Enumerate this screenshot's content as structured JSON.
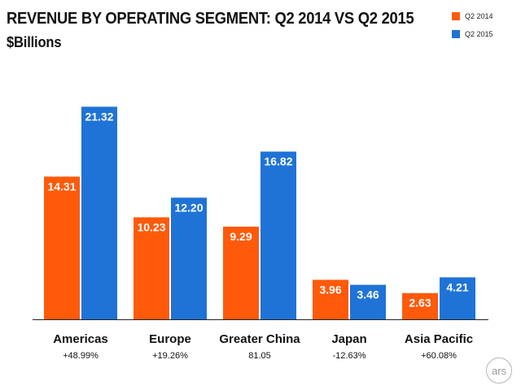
{
  "chart_data": {
    "type": "bar",
    "title": "REVENUE BY OPERATING SEGMENT: Q2 2014 VS Q2 2015",
    "subtitle": "$Billions",
    "categories": [
      "Americas",
      "Europe",
      "Greater China",
      "Japan",
      "Asia Pacific"
    ],
    "category_notes": [
      "+48.99%",
      "+19.26%",
      "81.05",
      "-12.63%",
      "+60.08%"
    ],
    "series": [
      {
        "name": "Q2 2014",
        "color": "#ff5a0a",
        "values": [
          14.31,
          10.23,
          9.29,
          3.96,
          2.63
        ],
        "labels": [
          "14.31",
          "10.23",
          "9.29",
          "3.96",
          "2.63"
        ]
      },
      {
        "name": "Q2 2015",
        "color": "#1f73d6",
        "values": [
          21.32,
          12.2,
          16.82,
          3.46,
          4.21
        ],
        "labels": [
          "21.32",
          "12.20",
          "16.82",
          "3.46",
          "4.21"
        ]
      }
    ],
    "ylim": [
      0,
      22.0
    ],
    "grid": false,
    "legend_position": "top-right",
    "xlabel": "",
    "ylabel": ""
  },
  "logo": {
    "icon": "ars-logo-icon",
    "text": "ars"
  }
}
